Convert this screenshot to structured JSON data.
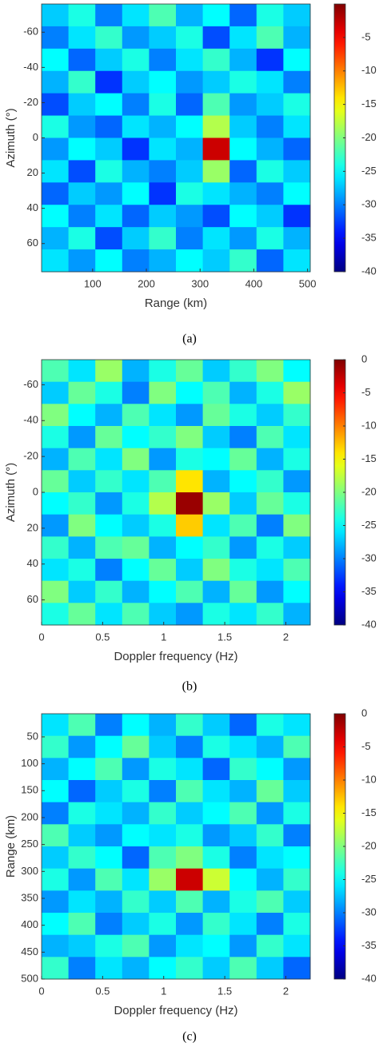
{
  "chart_data": [
    {
      "type": "heatmap",
      "colormap": "jet",
      "xlabel": "Range (km)",
      "ylabel": "Azimuth (°)",
      "caption": "(a)",
      "xlim": [
        5,
        505
      ],
      "xticks": [
        100,
        200,
        300,
        400,
        500
      ],
      "ylim": [
        -76,
        76
      ],
      "yticks": [
        -60,
        -40,
        -20,
        0,
        20,
        40,
        60
      ],
      "yreverse": true,
      "clim": [
        -40,
        0
      ],
      "cticks": [
        -5,
        -10,
        -15,
        -20,
        -25,
        -30,
        -35,
        -40
      ],
      "z": [
        [
          -27,
          -24,
          -30,
          -26,
          -22,
          -28,
          -25,
          -31,
          -24,
          -27
        ],
        [
          -30,
          -26,
          -23,
          -29,
          -27,
          -24,
          -32,
          -26,
          -22,
          -28
        ],
        [
          -25,
          -31,
          -27,
          -24,
          -30,
          -26,
          -23,
          -28,
          -33,
          -25
        ],
        [
          -28,
          -23,
          -33,
          -27,
          -25,
          -29,
          -27,
          -24,
          -26,
          -30
        ],
        [
          -32,
          -27,
          -25,
          -30,
          -24,
          -31,
          -22,
          -29,
          -27,
          -24
        ],
        [
          -24,
          -29,
          -31,
          -26,
          -28,
          -25,
          -18,
          -27,
          -30,
          -26
        ],
        [
          -29,
          -25,
          -27,
          -33,
          -26,
          -28,
          -3,
          -25,
          -28,
          -31
        ],
        [
          -26,
          -32,
          -24,
          -28,
          -30,
          -27,
          -19,
          -31,
          -24,
          -27
        ],
        [
          -31,
          -27,
          -29,
          -25,
          -33,
          -24,
          -26,
          -28,
          -30,
          -25
        ],
        [
          -25,
          -30,
          -26,
          -31,
          -27,
          -29,
          -32,
          -25,
          -27,
          -33
        ],
        [
          -28,
          -24,
          -32,
          -27,
          -23,
          -30,
          -26,
          -29,
          -24,
          -28
        ],
        [
          -26,
          -29,
          -25,
          -30,
          -28,
          -25,
          -27,
          -23,
          -31,
          -26
        ]
      ]
    },
    {
      "type": "heatmap",
      "colormap": "jet",
      "xlabel": "Doppler frequency (Hz)",
      "ylabel": "Azimuth (°)",
      "caption": "(b)",
      "xlim": [
        0,
        2.2
      ],
      "xticks": [
        0,
        0.5,
        1,
        1.5,
        2
      ],
      "ylim": [
        -74,
        74
      ],
      "yticks": [
        -60,
        -40,
        -20,
        0,
        20,
        40,
        60
      ],
      "yreverse": true,
      "clim": [
        -40,
        0
      ],
      "cticks": [
        0,
        -5,
        -10,
        -15,
        -20,
        -25,
        -30,
        -35,
        -40
      ],
      "z": [
        [
          -22,
          -26,
          -19,
          -28,
          -24,
          -21,
          -27,
          -23,
          -20,
          -25
        ],
        [
          -27,
          -21,
          -24,
          -30,
          -20,
          -25,
          -22,
          -28,
          -24,
          -19
        ],
        [
          -20,
          -25,
          -28,
          -22,
          -26,
          -29,
          -21,
          -24,
          -27,
          -23
        ],
        [
          -24,
          -29,
          -21,
          -25,
          -23,
          -20,
          -27,
          -30,
          -22,
          -26
        ],
        [
          -28,
          -22,
          -26,
          -20,
          -29,
          -24,
          -25,
          -21,
          -28,
          -24
        ],
        [
          -21,
          -27,
          -23,
          -26,
          -22,
          -14,
          -28,
          -25,
          -23,
          -29
        ],
        [
          -25,
          -23,
          -29,
          -24,
          -18,
          -1,
          -19,
          -27,
          -21,
          -24
        ],
        [
          -29,
          -20,
          -25,
          -27,
          -24,
          -13,
          -26,
          -22,
          -30,
          -20
        ],
        [
          -23,
          -28,
          -22,
          -21,
          -28,
          -25,
          -23,
          -29,
          -24,
          -27
        ],
        [
          -26,
          -24,
          -30,
          -25,
          -21,
          -27,
          -20,
          -24,
          -26,
          -22
        ],
        [
          -20,
          -27,
          -23,
          -28,
          -25,
          -22,
          -28,
          -21,
          -29,
          -25
        ],
        [
          -24,
          -21,
          -26,
          -22,
          -27,
          -29,
          -24,
          -26,
          -23,
          -28
        ]
      ]
    },
    {
      "type": "heatmap",
      "colormap": "jet",
      "xlabel": "Doppler frequency (Hz)",
      "ylabel": "Range (km)",
      "caption": "(c)",
      "xlim": [
        0,
        2.2
      ],
      "xticks": [
        0,
        0.5,
        1,
        1.5,
        2
      ],
      "ylim": [
        7,
        500
      ],
      "yticks": [
        50,
        100,
        150,
        200,
        250,
        300,
        350,
        400,
        450,
        500
      ],
      "yreverse": true,
      "clim": [
        -40,
        0
      ],
      "cticks": [
        0,
        -5,
        -10,
        -15,
        -20,
        -25,
        -30,
        -35,
        -40
      ],
      "z": [
        [
          -26,
          -22,
          -30,
          -25,
          -28,
          -23,
          -27,
          -31,
          -24,
          -26
        ],
        [
          -23,
          -29,
          -25,
          -21,
          -27,
          -30,
          -24,
          -26,
          -28,
          -22
        ],
        [
          -28,
          -25,
          -22,
          -29,
          -24,
          -26,
          -31,
          -23,
          -25,
          -29
        ],
        [
          -25,
          -31,
          -27,
          -24,
          -30,
          -22,
          -26,
          -28,
          -21,
          -27
        ],
        [
          -30,
          -24,
          -26,
          -28,
          -23,
          -27,
          -25,
          -22,
          -29,
          -24
        ],
        [
          -22,
          -27,
          -29,
          -25,
          -26,
          -24,
          -29,
          -27,
          -23,
          -30
        ],
        [
          -27,
          -23,
          -25,
          -31,
          -22,
          -20,
          -24,
          -30,
          -26,
          -25
        ],
        [
          -24,
          -29,
          -22,
          -26,
          -19,
          -3,
          -17,
          -25,
          -28,
          -23
        ],
        [
          -29,
          -26,
          -28,
          -23,
          -27,
          -22,
          -28,
          -24,
          -22,
          -27
        ],
        [
          -25,
          -22,
          -30,
          -27,
          -24,
          -29,
          -23,
          -26,
          -30,
          -24
        ],
        [
          -28,
          -27,
          -24,
          -22,
          -29,
          -26,
          -25,
          -29,
          -23,
          -26
        ],
        [
          -23,
          -30,
          -26,
          -28,
          -25,
          -23,
          -27,
          -22,
          -27,
          -31
        ]
      ]
    }
  ]
}
